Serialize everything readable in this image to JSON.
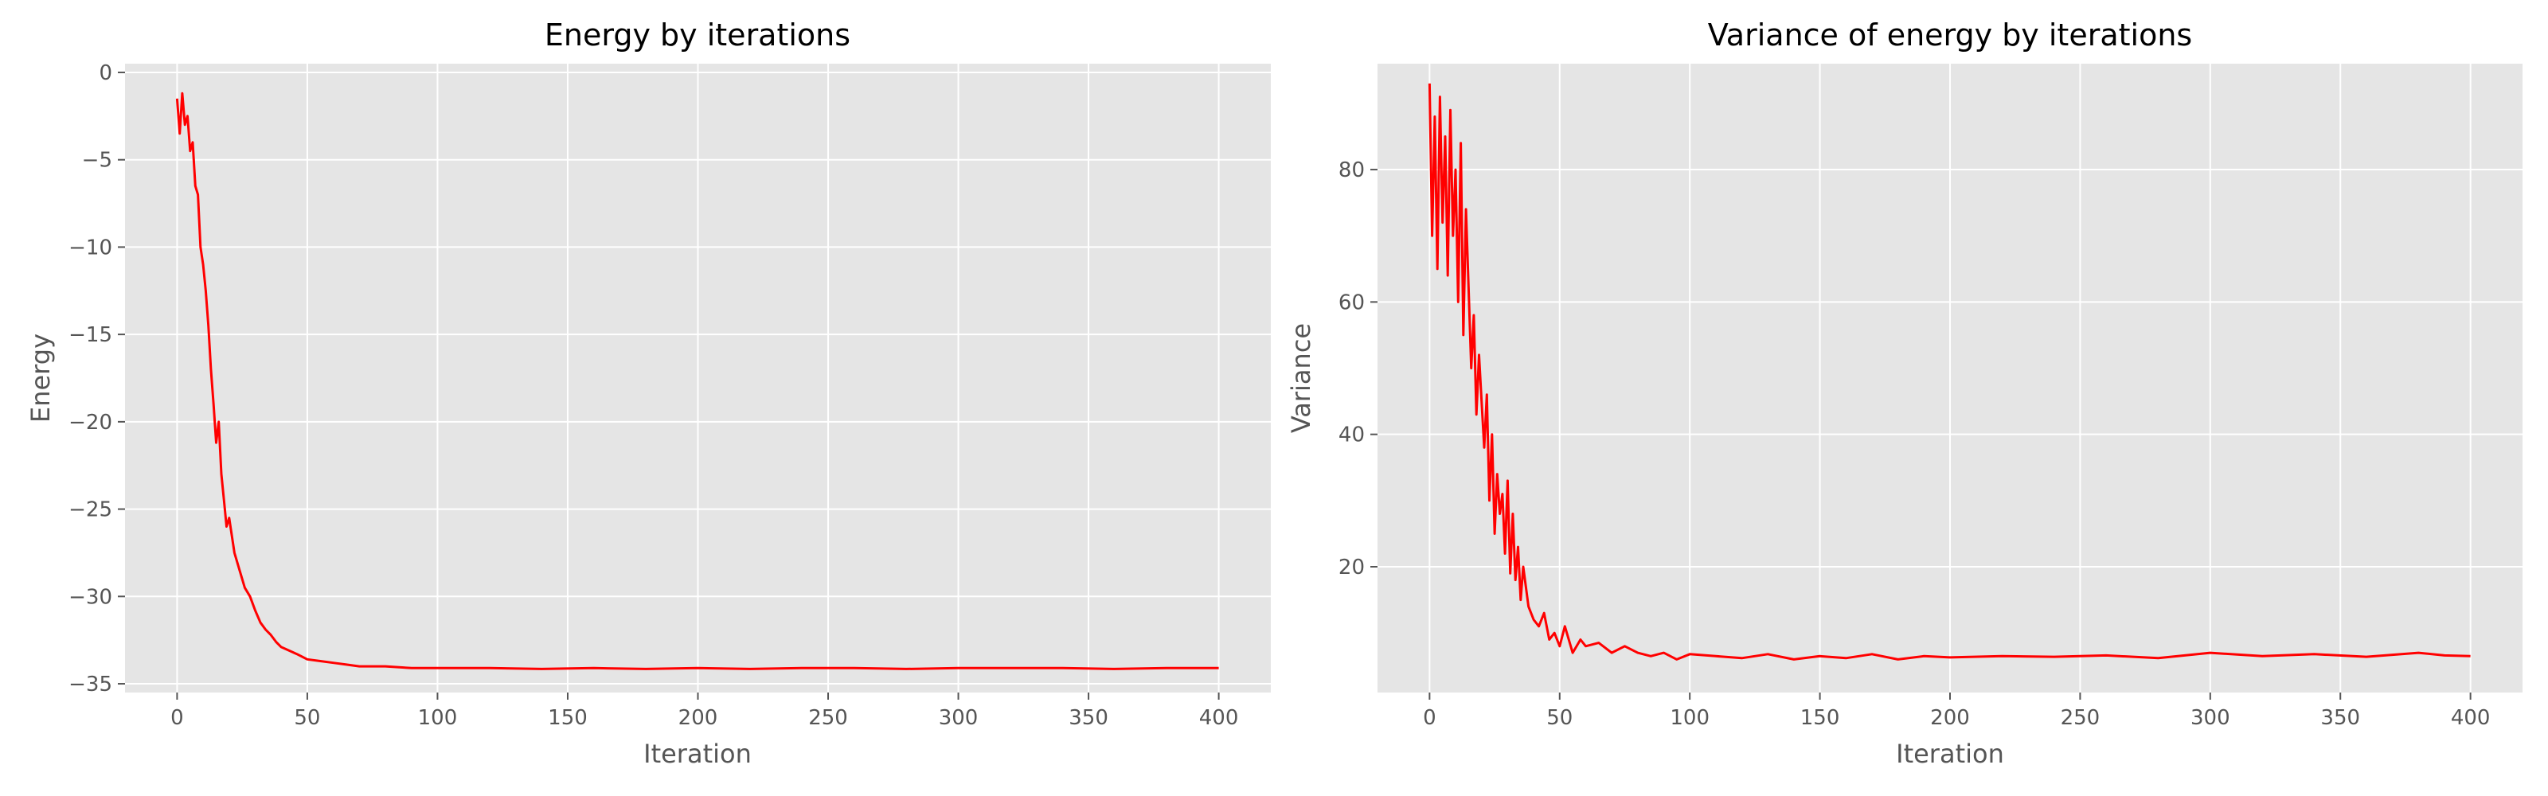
{
  "figure": {
    "line_color": "#ff0000",
    "panel_bg": "#e5e5e5",
    "grid_color": "#ffffff",
    "tick_color": "#555555"
  },
  "chart_data": [
    {
      "type": "line",
      "title": "Energy by iterations",
      "xlabel": "Iteration",
      "ylabel": "Energy",
      "xlim": [
        -20,
        420
      ],
      "ylim": [
        -35.5,
        0.5
      ],
      "xticks": [
        0,
        50,
        100,
        150,
        200,
        250,
        300,
        350,
        400
      ],
      "yticks": [
        0,
        -5,
        -10,
        -15,
        -20,
        -25,
        -30,
        -35
      ],
      "xtick_labels": [
        "0",
        "50",
        "100",
        "150",
        "200",
        "250",
        "300",
        "350",
        "400"
      ],
      "ytick_labels": [
        "0",
        "−5",
        "−10",
        "−15",
        "−20",
        "−25",
        "−30",
        "−35"
      ],
      "grid": true,
      "series": [
        {
          "x": [
            0,
            1,
            2,
            3,
            4,
            5,
            6,
            7,
            8,
            9,
            10,
            11,
            12,
            13,
            14,
            15,
            16,
            17,
            18,
            19,
            20,
            22,
            24,
            26,
            28,
            30,
            32,
            34,
            36,
            38,
            40,
            43,
            46,
            50,
            55,
            60,
            65,
            70,
            80,
            90,
            100,
            120,
            140,
            160,
            180,
            200,
            220,
            240,
            260,
            280,
            300,
            320,
            340,
            360,
            380,
            400
          ],
          "y": [
            -1.5,
            -3.5,
            -1.2,
            -3.0,
            -2.5,
            -4.5,
            -4.0,
            -6.5,
            -7.0,
            -10.0,
            -11.0,
            -12.5,
            -14.5,
            -17.0,
            -19.0,
            -21.2,
            -20.0,
            -23.0,
            -24.5,
            -26.0,
            -25.5,
            -27.5,
            -28.5,
            -29.5,
            -30.0,
            -30.8,
            -31.5,
            -31.9,
            -32.2,
            -32.6,
            -32.9,
            -33.1,
            -33.3,
            -33.6,
            -33.7,
            -33.8,
            -33.9,
            -34.0,
            -34.0,
            -34.1,
            -34.1,
            -34.1,
            -34.15,
            -34.1,
            -34.15,
            -34.1,
            -34.15,
            -34.1,
            -34.1,
            -34.15,
            -34.1,
            -34.1,
            -34.1,
            -34.15,
            -34.1,
            -34.1
          ]
        }
      ]
    },
    {
      "type": "line",
      "title": "Variance of energy by iterations",
      "xlabel": "Iteration",
      "ylabel": "Variance",
      "xlim": [
        -20,
        420
      ],
      "ylim": [
        1,
        96
      ],
      "xticks": [
        0,
        50,
        100,
        150,
        200,
        250,
        300,
        350,
        400
      ],
      "yticks": [
        20,
        40,
        60,
        80
      ],
      "xtick_labels": [
        "0",
        "50",
        "100",
        "150",
        "200",
        "250",
        "300",
        "350",
        "400"
      ],
      "ytick_labels": [
        "20",
        "40",
        "60",
        "80"
      ],
      "grid": true,
      "series": [
        {
          "x": [
            0,
            1,
            2,
            3,
            4,
            5,
            6,
            7,
            8,
            9,
            10,
            11,
            12,
            13,
            14,
            15,
            16,
            17,
            18,
            19,
            20,
            21,
            22,
            23,
            24,
            25,
            26,
            27,
            28,
            29,
            30,
            31,
            32,
            33,
            34,
            35,
            36,
            38,
            40,
            42,
            44,
            46,
            48,
            50,
            52,
            55,
            58,
            60,
            65,
            70,
            75,
            80,
            85,
            90,
            95,
            100,
            110,
            120,
            130,
            140,
            150,
            160,
            170,
            180,
            190,
            200,
            220,
            240,
            260,
            280,
            300,
            320,
            340,
            360,
            380,
            390,
            400
          ],
          "y": [
            93,
            70,
            88,
            65,
            91,
            72,
            85,
            64,
            89,
            70,
            80,
            60,
            84,
            55,
            74,
            62,
            50,
            58,
            43,
            52,
            45,
            38,
            46,
            30,
            40,
            25,
            34,
            28,
            31,
            22,
            33,
            19,
            28,
            18,
            23,
            15,
            20,
            14,
            12,
            11,
            13,
            9,
            10,
            8,
            11,
            7,
            9,
            8,
            8.5,
            7,
            8,
            7,
            6.5,
            7,
            6,
            6.8,
            6.5,
            6.2,
            6.8,
            6.0,
            6.5,
            6.2,
            6.8,
            6.0,
            6.5,
            6.3,
            6.5,
            6.4,
            6.6,
            6.2,
            7.0,
            6.5,
            6.8,
            6.4,
            7.0,
            6.6,
            6.5
          ]
        }
      ]
    }
  ]
}
